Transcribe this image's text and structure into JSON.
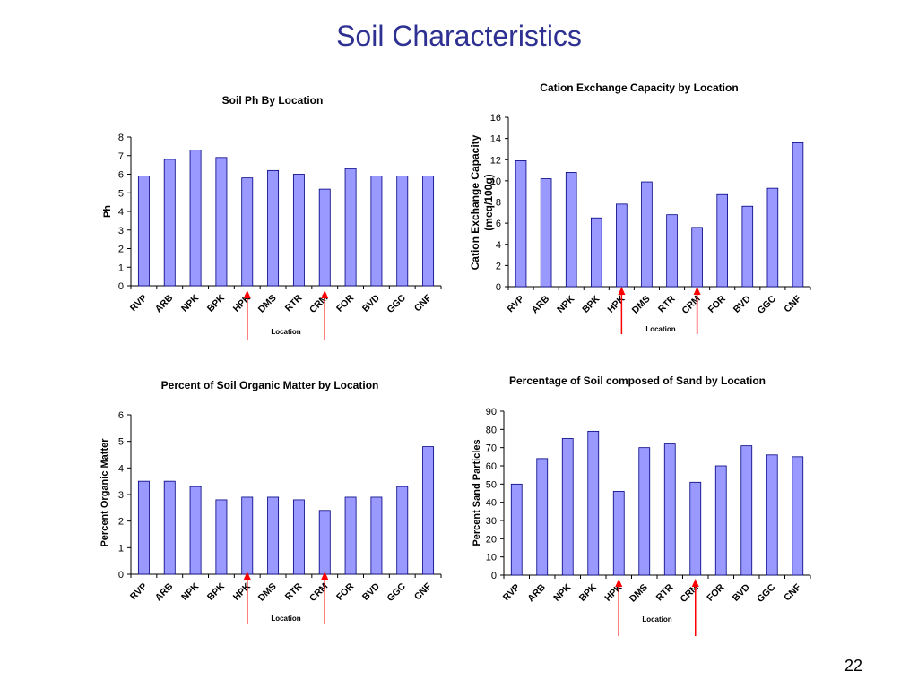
{
  "slide": {
    "title": "Soil Characteristics",
    "page_number": "22",
    "colors": {
      "bar_fill": "#9999ff",
      "bar_stroke": "#000080",
      "arrow": "#ff0000",
      "title": "#2e3192"
    }
  },
  "chart_data": [
    {
      "type": "bar",
      "title": "Soil Ph By Location",
      "xlabel": "Location",
      "ylabel": "Ph",
      "categories": [
        "RVP",
        "ARB",
        "NPK",
        "BPK",
        "HPK",
        "DMS",
        "RTR",
        "CRM",
        "FOR",
        "BVD",
        "GGC",
        "CNF"
      ],
      "values": [
        5.9,
        6.8,
        7.3,
        6.9,
        5.8,
        6.2,
        6.0,
        5.2,
        6.3,
        5.9,
        5.9,
        5.9
      ],
      "ylim": [
        0,
        8
      ],
      "yticks": [
        0,
        1,
        2,
        3,
        4,
        5,
        6,
        7,
        8
      ],
      "grid": false,
      "arrow_categories": [
        "HPK",
        "CRM"
      ]
    },
    {
      "type": "bar",
      "title": "Cation Exchange Capacity by Location",
      "xlabel": "Location",
      "ylabel": "Cation Exchange Capacity (meq/100g)",
      "ylabel_lines": [
        "Cation Exchange Capacity",
        "(meq/100g)"
      ],
      "categories": [
        "RVP",
        "ARB",
        "NPK",
        "BPK",
        "HPK",
        "DMS",
        "RTR",
        "CRM",
        "FOR",
        "BVD",
        "GGC",
        "CNF"
      ],
      "values": [
        11.9,
        10.2,
        10.8,
        6.5,
        7.8,
        9.9,
        6.8,
        5.6,
        8.7,
        7.6,
        9.3,
        13.6
      ],
      "ylim": [
        0,
        16
      ],
      "yticks": [
        0,
        2,
        4,
        6,
        8,
        10,
        12,
        14,
        16
      ],
      "grid": false,
      "arrow_categories": [
        "HPK",
        "CRM"
      ]
    },
    {
      "type": "bar",
      "title": "Percent of Soil Organic Matter by Location",
      "xlabel": "Location",
      "ylabel": "Percent Organic Matter",
      "categories": [
        "RVP",
        "ARB",
        "NPK",
        "BPK",
        "HPK",
        "DMS",
        "RTR",
        "CRM",
        "FOR",
        "BVD",
        "GGC",
        "CNF"
      ],
      "values": [
        3.5,
        3.5,
        3.3,
        2.8,
        2.9,
        2.9,
        2.8,
        2.4,
        2.9,
        2.9,
        3.3,
        4.8
      ],
      "ylim": [
        0,
        6
      ],
      "yticks": [
        0,
        1,
        2,
        3,
        4,
        5,
        6
      ],
      "grid": false,
      "arrow_categories": [
        "HPK",
        "CRM"
      ]
    },
    {
      "type": "bar",
      "title": "Percentage of Soil composed of Sand by Location",
      "xlabel": "Location",
      "ylabel": "Percent Sand Particles",
      "categories": [
        "RVP",
        "ARB",
        "NPK",
        "BPK",
        "HPK",
        "DMS",
        "RTR",
        "CRM",
        "FOR",
        "BVD",
        "GGC",
        "CNF"
      ],
      "values": [
        50,
        64,
        75,
        79,
        46,
        70,
        72,
        51,
        60,
        71,
        66,
        65
      ],
      "ylim": [
        0,
        90
      ],
      "yticks": [
        0,
        10,
        20,
        30,
        40,
        50,
        60,
        70,
        80,
        90
      ],
      "grid": false,
      "arrow_categories": [
        "HPK",
        "CRM"
      ]
    }
  ]
}
